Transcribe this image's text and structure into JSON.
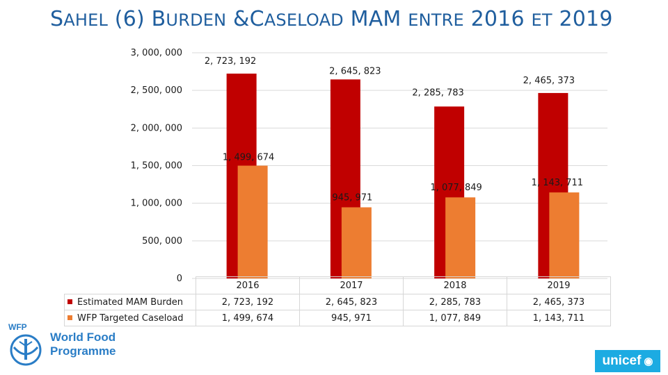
{
  "title": {
    "part1_cap": "S",
    "part1_sm": "AHEL",
    "part2": " (6) ",
    "part3_cap": "B",
    "part3_sm": "URDEN",
    "part4": " &",
    "part5_cap": "C",
    "part5_sm": "ASELOAD",
    "part6": " MAM ",
    "part7_sm": "ENTRE",
    "part8": " 2016 ",
    "part9_sm": "ET",
    "part10": " 2019"
  },
  "chart_data": {
    "type": "bar",
    "title": "Sahel (6) Burden & Caseload MAM entre 2016 et 2019",
    "categories": [
      "2016",
      "2017",
      "2018",
      "2019"
    ],
    "series": [
      {
        "name": "Estimated MAM Burden",
        "color": "#c00000",
        "values": [
          2723192,
          2645823,
          2285783,
          2465373
        ],
        "labels": [
          "2, 723, 192",
          "2, 645, 823",
          "2, 285, 783",
          "2, 465, 373"
        ]
      },
      {
        "name": "WFP Targeted Caseload",
        "color": "#ed7d31",
        "values": [
          1499674,
          945971,
          1077849,
          1143711
        ],
        "labels": [
          "1, 499, 674",
          "945, 971",
          "1, 077, 849",
          "1, 143, 711"
        ]
      }
    ],
    "y_ticks": [
      0,
      500000,
      1000000,
      1500000,
      2000000,
      2500000,
      3000000
    ],
    "y_tick_labels": [
      "0",
      "500, 000",
      "1, 000, 000",
      "1, 500, 000",
      "2, 000, 000",
      "2, 500, 000",
      "3, 000, 000"
    ],
    "ylim": [
      0,
      3000000
    ],
    "grid": true,
    "legend": "bottom-left table",
    "table": {
      "header": [
        "2016",
        "2017",
        "2018",
        "2019"
      ],
      "rows": [
        {
          "name": "Estimated MAM Burden",
          "cells": [
            "2, 723, 192",
            "2, 645, 823",
            "2, 285, 783",
            "2, 465, 373"
          ]
        },
        {
          "name": "WFP Targeted Caseload",
          "cells": [
            "1, 499, 674",
            "945, 971",
            "1, 077, 849",
            "1, 143, 711"
          ]
        }
      ]
    }
  },
  "logos": {
    "wfp_line1": "World Food",
    "wfp_line2": "Programme",
    "unicef": "unicef",
    "wfp_color": "#2a7dc6",
    "unicef_color": "#1cabe2"
  }
}
